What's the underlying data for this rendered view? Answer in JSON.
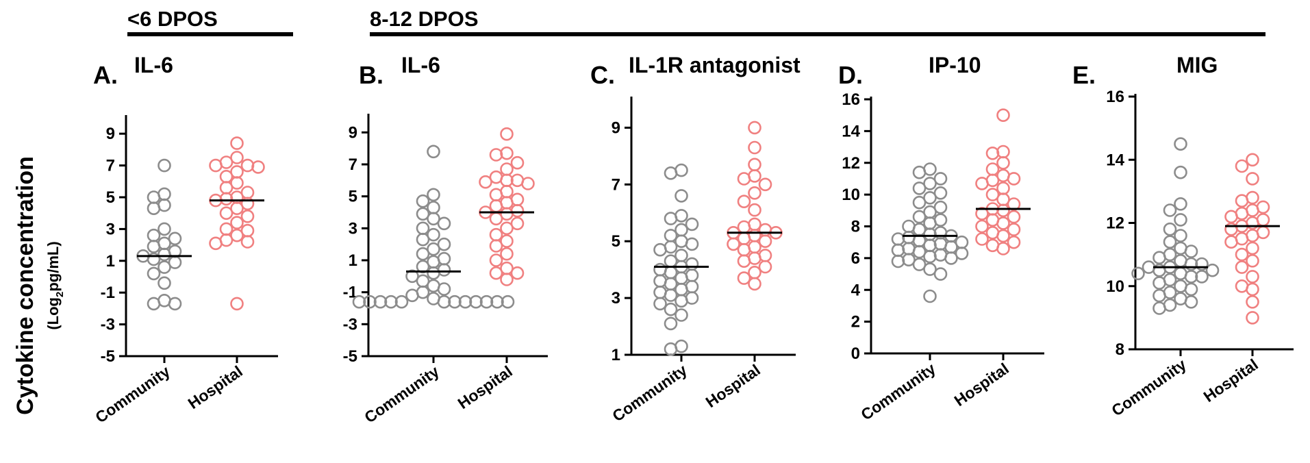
{
  "groups": [
    {
      "label": "<6 DPOS",
      "panels": [
        0
      ]
    },
    {
      "label": "8-12 DPOS",
      "panels": [
        1,
        2,
        3,
        4
      ]
    }
  ],
  "ylabel": {
    "main": "Cytokine concentration",
    "unit_prefix": "(Log",
    "unit_sub": "2",
    "unit_suffix": "pg/mL)"
  },
  "colors": {
    "community": "#8c8c8c",
    "hospital": "#f08080",
    "median": "#000000",
    "axis": "#000000"
  },
  "chart_data": [
    {
      "type": "scatter",
      "letter": "A.",
      "title": "IL-6",
      "categories": [
        "Community",
        "Hospital"
      ],
      "yticks": [
        9,
        7,
        5,
        3,
        1,
        -1,
        -3,
        -5
      ],
      "ylim": [
        -5,
        10
      ],
      "series": [
        {
          "name": "Community",
          "median": 1.3,
          "values": [
            7.0,
            5.2,
            5.0,
            4.5,
            4.3,
            3.0,
            2.6,
            2.4,
            2.1,
            1.9,
            1.6,
            1.4,
            1.3,
            1.1,
            0.9,
            0.6,
            0.2,
            -0.4,
            -1.5,
            -1.7,
            -1.7
          ]
        },
        {
          "name": "Hospital",
          "median": 4.8,
          "values": [
            8.4,
            7.5,
            7.2,
            7.0,
            7.0,
            6.9,
            6.6,
            6.3,
            5.9,
            5.6,
            5.3,
            5.0,
            4.9,
            4.8,
            4.6,
            4.3,
            4.0,
            3.8,
            3.4,
            3.0,
            2.9,
            2.6,
            2.3,
            2.2,
            2.1,
            -1.7
          ]
        }
      ]
    },
    {
      "type": "scatter",
      "letter": "B.",
      "title": "IL-6",
      "categories": [
        "Community",
        "Hospital"
      ],
      "yticks": [
        9,
        7,
        5,
        3,
        1,
        -1,
        -3,
        -5
      ],
      "ylim": [
        -5,
        10
      ],
      "series": [
        {
          "name": "Community",
          "median": 0.3,
          "values": [
            7.8,
            5.1,
            4.7,
            4.3,
            3.9,
            3.6,
            3.3,
            3.0,
            2.6,
            2.3,
            2.0,
            1.7,
            1.4,
            1.1,
            0.9,
            0.6,
            0.4,
            0.2,
            0.0,
            -0.3,
            -0.6,
            -0.8,
            -1.0,
            -1.2,
            -1.4,
            -1.6,
            -1.6,
            -1.6,
            -1.6,
            -1.6,
            -1.6,
            -1.6,
            -1.6,
            -1.6,
            -1.6,
            -1.6,
            -1.6
          ]
        },
        {
          "name": "Hospital",
          "median": 4.0,
          "values": [
            8.9,
            7.7,
            7.6,
            7.1,
            6.7,
            6.2,
            6.0,
            6.0,
            5.9,
            5.8,
            5.3,
            5.1,
            4.8,
            4.6,
            4.4,
            4.1,
            4.0,
            3.9,
            3.6,
            3.3,
            3.0,
            2.6,
            2.2,
            1.9,
            1.4,
            1.0,
            0.5,
            0.2,
            0.2,
            -0.2
          ]
        }
      ]
    },
    {
      "type": "scatter",
      "letter": "C.",
      "title": "IL-1R antagonist",
      "categories": [
        "Community",
        "Hospital"
      ],
      "yticks": [
        9,
        7,
        5,
        3,
        1
      ],
      "ylim": [
        1,
        10
      ],
      "series": [
        {
          "name": "Community",
          "median": 4.1,
          "values": [
            7.5,
            7.4,
            6.6,
            5.9,
            5.8,
            5.6,
            5.4,
            5.2,
            5.0,
            4.9,
            4.8,
            4.7,
            4.5,
            4.3,
            4.2,
            4.1,
            4.0,
            3.9,
            3.8,
            3.7,
            3.6,
            3.5,
            3.4,
            3.3,
            3.2,
            3.1,
            3.0,
            2.9,
            2.8,
            2.6,
            2.4,
            2.1,
            1.3,
            1.2
          ]
        },
        {
          "name": "Hospital",
          "median": 5.3,
          "values": [
            9.0,
            8.3,
            7.7,
            7.3,
            7.2,
            7.0,
            6.7,
            6.4,
            6.1,
            5.6,
            5.5,
            5.4,
            5.3,
            5.3,
            5.2,
            5.1,
            5.0,
            4.9,
            4.8,
            4.7,
            4.5,
            4.4,
            4.3,
            4.1,
            3.9,
            3.7,
            3.5
          ]
        }
      ]
    },
    {
      "type": "scatter",
      "letter": "D.",
      "title": "IP-10",
      "categories": [
        "Community",
        "Hospital"
      ],
      "yticks": [
        16,
        14,
        12,
        10,
        8,
        6,
        4,
        2,
        0
      ],
      "ylim": [
        0,
        16
      ],
      "series": [
        {
          "name": "Community",
          "median": 7.4,
          "values": [
            11.6,
            11.4,
            11.0,
            10.7,
            10.4,
            10.1,
            9.8,
            9.5,
            9.2,
            8.9,
            8.6,
            8.4,
            8.2,
            8.0,
            7.8,
            7.6,
            7.5,
            7.4,
            7.3,
            7.2,
            7.1,
            7.0,
            6.9,
            6.8,
            6.7,
            6.6,
            6.5,
            6.4,
            6.3,
            6.2,
            6.1,
            6.0,
            5.9,
            5.8,
            5.6,
            5.3,
            5.0,
            3.6
          ]
        },
        {
          "name": "Hospital",
          "median": 9.1,
          "values": [
            15.0,
            12.7,
            12.6,
            12.0,
            11.6,
            11.2,
            11.0,
            10.9,
            10.7,
            10.4,
            10.0,
            9.7,
            9.4,
            9.1,
            9.0,
            8.8,
            8.6,
            8.4,
            8.2,
            8.0,
            7.8,
            7.6,
            7.4,
            7.2,
            7.0,
            6.8,
            6.6
          ]
        }
      ]
    },
    {
      "type": "scatter",
      "letter": "E.",
      "title": "MIG",
      "categories": [
        "Community",
        "Hospital"
      ],
      "yticks": [
        16,
        14,
        12,
        10,
        8
      ],
      "ylim": [
        8,
        16
      ],
      "series": [
        {
          "name": "Community",
          "median": 10.6,
          "values": [
            14.5,
            13.6,
            12.6,
            12.4,
            12.1,
            11.8,
            11.6,
            11.4,
            11.2,
            11.1,
            11.0,
            10.9,
            10.8,
            10.7,
            10.7,
            10.6,
            10.6,
            10.5,
            10.5,
            10.4,
            10.4,
            10.3,
            10.3,
            10.2,
            10.1,
            10.0,
            9.9,
            9.8,
            9.7,
            9.6,
            9.5,
            9.4,
            9.3
          ]
        },
        {
          "name": "Hospital",
          "median": 11.9,
          "values": [
            14.0,
            13.8,
            13.4,
            12.8,
            12.7,
            12.5,
            12.4,
            12.3,
            12.2,
            12.1,
            12.0,
            11.9,
            11.8,
            11.7,
            11.6,
            11.5,
            11.4,
            11.2,
            11.0,
            10.8,
            10.6,
            10.3,
            10.0,
            9.9,
            9.5,
            9.0
          ]
        }
      ]
    }
  ]
}
